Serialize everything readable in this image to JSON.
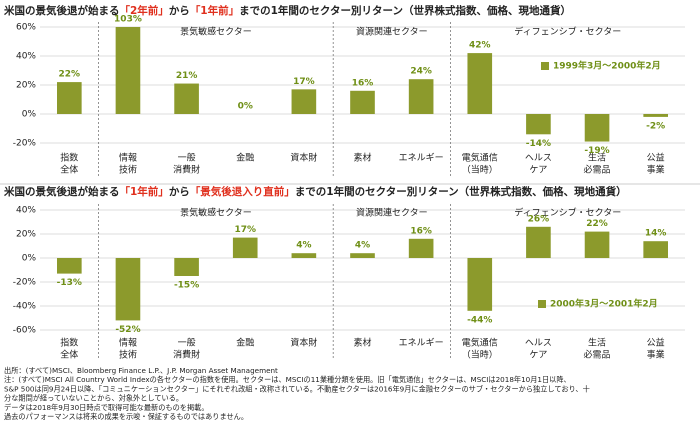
{
  "chart_data": [
    {
      "type": "bar",
      "title_parts": [
        "米国の景気後退が始まる",
        "「2年前」",
        "から",
        "「1年前」",
        "までの1年間のセクター別リターン（世界株式指数、価格、現地通貨）"
      ],
      "categories": [
        [
          "指数",
          "全体"
        ],
        [
          "情報",
          "技術"
        ],
        [
          "一般",
          "消費財"
        ],
        [
          "金融"
        ],
        [
          "資本財"
        ],
        [
          "素材"
        ],
        [
          "エネルギー"
        ],
        [
          "電気通信",
          "（当時）"
        ],
        [
          "ヘルス",
          "ケア"
        ],
        [
          "生活",
          "必需品"
        ],
        [
          "公益",
          "事業"
        ]
      ],
      "values": [
        22,
        103,
        21,
        0,
        17,
        16,
        24,
        42,
        -14,
        -19,
        -2
      ],
      "value_labels": [
        "22%",
        "103%",
        "21%",
        "0%",
        "17%",
        "16%",
        "24%",
        "42%",
        "-14%",
        "-19%",
        "-2%"
      ],
      "series_name": "1999年3月～2000年2月",
      "color": "#8c9a2c",
      "groups": [
        "景気敏感セクター",
        "資源関連セクター",
        "ディフェンシブ・セクター"
      ],
      "ylim": [
        -20,
        60
      ],
      "yticks": [
        {
          "value": -20,
          "label": "-20%"
        },
        {
          "value": 0,
          "label": "0%"
        },
        {
          "value": 20,
          "label": "20%"
        },
        {
          "value": 40,
          "label": "40%"
        },
        {
          "value": 60,
          "label": "60%"
        }
      ]
    },
    {
      "type": "bar",
      "title_parts": [
        "米国の景気後退が始まる",
        "「1年前」",
        "から",
        "「景気後退入り直前」",
        "までの1年間のセクター別リターン（世界株式指数、価格、現地通貨）"
      ],
      "categories": [
        [
          "指数",
          "全体"
        ],
        [
          "情報",
          "技術"
        ],
        [
          "一般",
          "消費財"
        ],
        [
          "金融"
        ],
        [
          "資本財"
        ],
        [
          "素材"
        ],
        [
          "エネルギー"
        ],
        [
          "電気通信",
          "（当時）"
        ],
        [
          "ヘルス",
          "ケア"
        ],
        [
          "生活",
          "必需品"
        ],
        [
          "公益",
          "事業"
        ]
      ],
      "values": [
        -13,
        -52,
        -15,
        17,
        4,
        4,
        16,
        -44,
        26,
        22,
        14
      ],
      "value_labels": [
        "-13%",
        "-52%",
        "-15%",
        "17%",
        "4%",
        "4%",
        "16%",
        "-44%",
        "26%",
        "22%",
        "14%"
      ],
      "series_name": "2000年3月～2001年2月",
      "color": "#8c9a2c",
      "groups": [
        "景気敏感セクター",
        "資源関連セクター",
        "ディフェンシブ・セクター"
      ],
      "ylim": [
        -60,
        40
      ],
      "yticks": [
        {
          "value": -60,
          "label": "-60%"
        },
        {
          "value": -40,
          "label": "-40%"
        },
        {
          "value": -20,
          "label": "-20%"
        },
        {
          "value": 0,
          "label": "0%"
        },
        {
          "value": 20,
          "label": "20%"
        },
        {
          "value": 40,
          "label": "40%"
        }
      ]
    }
  ],
  "notes": [
    "出所：(すべて)MSCI、Bloomberg Finance L.P.、J.P. Morgan Asset Management",
    "注：(すべて)MSCI All Country World Indexの各セクターの指数を使用。セクターは、MSCIの11業種分類を使用。旧「電気通信」セクターは、MSCIは2018年10月1日以降、",
    "S&P 500は同9月24日以降、「コミュニケーションセクター」にそれぞれ改組・改称されている。不動産セクターは2016年9月に金融セクターのサブ・セクターから独立しており、十",
    "分な期間が経っていないことから、対象外としている。",
    "データは2018年9月30日時点で取得可能な最新のものを掲載。",
    "過去のパフォーマンスは将来の成果を示唆・保証するものではありません。"
  ]
}
